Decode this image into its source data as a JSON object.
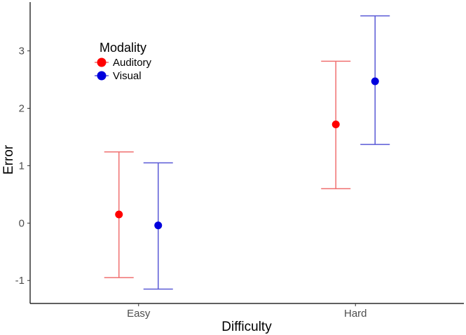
{
  "chart_data": {
    "type": "scatter",
    "xlabel": "Difficulty",
    "ylabel": "Error",
    "categories": [
      "Easy",
      "Hard"
    ],
    "ylim": [
      -1.4,
      3.85
    ],
    "yticks": [
      "-1",
      "0",
      "1",
      "2",
      "3"
    ],
    "grid": false,
    "legend": {
      "title": "Modality",
      "position": "top-left"
    },
    "series": [
      {
        "name": "Auditory",
        "color": "#ff0000",
        "errorbar_color": "#f07070",
        "points": [
          {
            "category": "Easy",
            "y": 0.15,
            "ymin": -0.95,
            "ymax": 1.24
          },
          {
            "category": "Hard",
            "y": 1.72,
            "ymin": 0.6,
            "ymax": 2.82
          }
        ]
      },
      {
        "name": "Visual",
        "color": "#0000dd",
        "errorbar_color": "#5a5ad6",
        "points": [
          {
            "category": "Easy",
            "y": -0.04,
            "ymin": -1.15,
            "ymax": 1.05
          },
          {
            "category": "Hard",
            "y": 2.47,
            "ymin": 1.37,
            "ymax": 3.61
          }
        ]
      }
    ]
  }
}
